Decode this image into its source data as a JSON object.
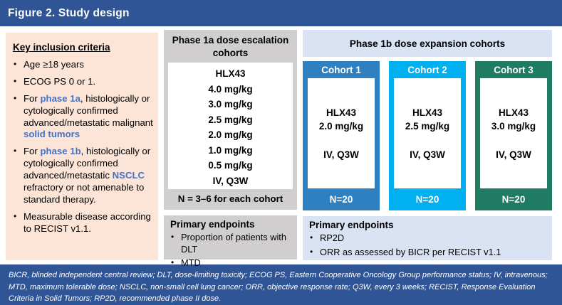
{
  "figure": {
    "title": "Figure 2. Study design"
  },
  "colors": {
    "title_bar": "#2F5597",
    "footer_bar": "#2F5597",
    "inclusion_bg": "#FCE4D6",
    "phase1a_bg": "#D0CECE",
    "phase1b_bg": "#DAE3F3",
    "accent_text": "#4472C4",
    "bullet": "#000000"
  },
  "inclusion": {
    "heading": "Key inclusion criteria",
    "bullets": [
      {
        "segments": [
          {
            "text": "Age ≥18 years"
          }
        ]
      },
      {
        "segments": [
          {
            "text": "ECOG PS 0 or 1."
          }
        ]
      },
      {
        "segments": [
          {
            "text": "For "
          },
          {
            "text": "phase 1a",
            "accent": true
          },
          {
            "text": ", histologically or cytologically confirmed advanced/metastatic malignant "
          },
          {
            "text": "solid tumors",
            "accent": true
          }
        ]
      },
      {
        "segments": [
          {
            "text": "For "
          },
          {
            "text": "phase 1b",
            "accent": true
          },
          {
            "text": ", histologically or cytologically confirmed advanced/metastatic "
          },
          {
            "text": "NSCLC",
            "accent": true
          },
          {
            "text": " refractory or not amenable to standard therapy."
          }
        ]
      },
      {
        "segments": [
          {
            "text": "Measurable disease according to RECIST v1.1."
          }
        ]
      }
    ]
  },
  "phase1a": {
    "header": "Phase 1a dose escalation cohorts",
    "drug": "HLX43",
    "doses": [
      "4.0 mg/kg",
      "3.0 mg/kg",
      "2.5 mg/kg",
      "2.0 mg/kg",
      "1.0 mg/kg",
      "0.5 mg/kg"
    ],
    "schedule": "IV, Q3W",
    "note": "N = 3–6 for each cohort",
    "endpoints": {
      "heading": "Primary endpoints",
      "bullets": [
        "Proportion of patients with DLT",
        "MTD"
      ]
    }
  },
  "phase1b": {
    "header": "Phase 1b dose expansion cohorts",
    "cohorts": [
      {
        "label": "Cohort 1",
        "drug": "HLX43",
        "dose": "2.0 mg/kg",
        "schedule": "IV, Q3W",
        "n": "N=20",
        "color": "#2E80C0"
      },
      {
        "label": "Cohort 2",
        "drug": "HLX43",
        "dose": "2.5 mg/kg",
        "schedule": "IV, Q3W",
        "n": "N=20",
        "color": "#00B0F0"
      },
      {
        "label": "Cohort 3",
        "drug": "HLX43",
        "dose": "3.0 mg/kg",
        "schedule": "IV, Q3W",
        "n": "N=20",
        "color": "#1F7C62"
      }
    ],
    "endpoints": {
      "heading": "Primary endpoints",
      "bullets": [
        "RP2D",
        "ORR as assessed by BICR per RECIST v1.1"
      ]
    }
  },
  "footnote": "BICR, blinded independent central review; DLT, dose-limiting toxicity; ECOG PS, Eastern Cooperative Oncology Group performance status; IV, intravenous; MTD, maximum tolerable dose; NSCLC, non-small cell lung cancer; ORR, objective response rate; Q3W, every 3 weeks; RECIST, Response Evaluation Criteria in Solid Tumors; RP2D, recommended phase II dose."
}
